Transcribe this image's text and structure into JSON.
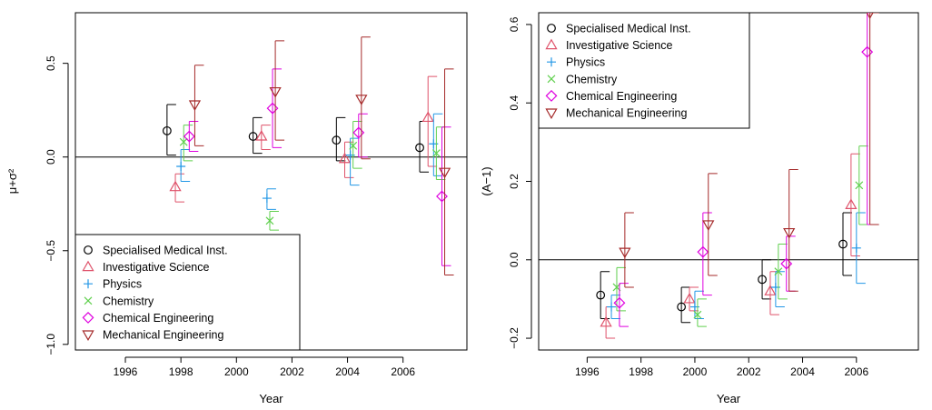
{
  "chart_data": [
    {
      "type": "scatter",
      "error_bars": true,
      "xlabel": "Year",
      "ylabel": "μ+σ²",
      "xlim": [
        1994.2,
        2008.3
      ],
      "ylim": [
        -1.03,
        0.77
      ],
      "xticks": [
        1996,
        1998,
        2000,
        2002,
        2004,
        2006
      ],
      "xtick_labels": [
        "1996",
        "1998",
        "2000",
        "2002",
        "2004",
        "2006"
      ],
      "yticks": [
        -1.0,
        -0.5,
        0.0,
        0.5
      ],
      "ytick_labels": [
        "−1.0",
        "−0.5",
        "0.0",
        "0.5"
      ],
      "hline": 0,
      "legend_position": "bottom-left",
      "series": [
        {
          "name": "Specialised Medical Inst.",
          "marker": "circle",
          "color": "#000000",
          "x": [
            1997.5,
            2000.6,
            2003.6,
            2006.6
          ],
          "y": [
            0.14,
            0.11,
            0.09,
            0.05
          ],
          "lower": [
            0.01,
            0.02,
            -0.02,
            -0.08
          ],
          "upper": [
            0.28,
            0.21,
            0.21,
            0.19
          ]
        },
        {
          "name": "Investigative Science",
          "marker": "triangle-up",
          "color": "#DF536B",
          "x": [
            1997.8,
            2000.9,
            2003.9,
            2006.9
          ],
          "y": [
            -0.16,
            0.11,
            -0.01,
            0.21
          ],
          "lower": [
            -0.24,
            0.04,
            -0.11,
            -0.05
          ],
          "upper": [
            -0.09,
            0.17,
            0.08,
            0.43
          ]
        },
        {
          "name": "Physics",
          "marker": "plus",
          "color": "#2297E6",
          "x": [
            1998.0,
            2001.1,
            2004.1,
            2007.1
          ],
          "y": [
            -0.05,
            -0.22,
            0.01,
            0.07
          ],
          "lower": [
            -0.13,
            -0.28,
            -0.15,
            -0.1
          ],
          "upper": [
            0.04,
            -0.17,
            0.1,
            0.23
          ]
        },
        {
          "name": "Chemistry",
          "marker": "cross",
          "color": "#61D04F",
          "x": [
            1998.1,
            2001.2,
            2004.2,
            2007.2
          ],
          "y": [
            0.08,
            -0.34,
            0.06,
            0.02
          ],
          "lower": [
            -0.02,
            -0.39,
            -0.06,
            -0.12
          ],
          "upper": [
            0.17,
            -0.29,
            0.19,
            0.16
          ]
        },
        {
          "name": "Chemical Engineering",
          "marker": "diamond",
          "color": "#DF00DF",
          "x": [
            1998.3,
            2001.3,
            2004.4,
            2007.4
          ],
          "y": [
            0.11,
            0.26,
            0.13,
            -0.21
          ],
          "lower": [
            0.03,
            0.05,
            0.0,
            -0.58
          ],
          "upper": [
            0.19,
            0.47,
            0.23,
            0.16
          ]
        },
        {
          "name": "Mechanical Engineering",
          "marker": "triangle-down",
          "color": "#A52A2A",
          "x": [
            1998.5,
            2001.4,
            2004.5,
            2007.5
          ],
          "y": [
            0.28,
            0.35,
            0.31,
            -0.08
          ],
          "lower": [
            0.06,
            0.09,
            -0.01,
            -0.63
          ],
          "upper": [
            0.49,
            0.62,
            0.64,
            0.47
          ]
        }
      ]
    },
    {
      "type": "scatter",
      "error_bars": true,
      "xlabel": "Year",
      "ylabel": "(A−1)",
      "xlim": [
        1994.2,
        2008.3
      ],
      "ylim": [
        -0.23,
        0.63
      ],
      "xticks": [
        1996,
        1998,
        2000,
        2002,
        2004,
        2006
      ],
      "xtick_labels": [
        "1996",
        "1998",
        "2000",
        "2002",
        "2004",
        "2006"
      ],
      "yticks": [
        -0.2,
        0.0,
        0.2,
        0.4,
        0.6
      ],
      "ytick_labels": [
        "−0.2",
        "0.0",
        "0.2",
        "0.4",
        "0.6"
      ],
      "hline": 0,
      "legend_position": "top-left",
      "series": [
        {
          "name": "Specialised Medical Inst.",
          "marker": "circle",
          "color": "#000000",
          "x": [
            1996.5,
            1999.5,
            2002.5,
            2005.5
          ],
          "y": [
            -0.09,
            -0.12,
            -0.05,
            0.04
          ],
          "lower": [
            -0.15,
            -0.16,
            -0.1,
            -0.04
          ],
          "upper": [
            -0.03,
            -0.07,
            0.0,
            0.12
          ]
        },
        {
          "name": "Investigative Science",
          "marker": "triangle-up",
          "color": "#DF536B",
          "x": [
            1996.7,
            1999.8,
            2002.8,
            2005.8
          ],
          "y": [
            -0.16,
            -0.1,
            -0.08,
            0.14
          ],
          "lower": [
            -0.2,
            -0.13,
            -0.14,
            0.01
          ],
          "upper": [
            -0.12,
            -0.07,
            -0.03,
            0.27
          ]
        },
        {
          "name": "Physics",
          "marker": "plus",
          "color": "#2297E6",
          "x": [
            1996.9,
            2000.0,
            2003.0,
            2006.0
          ],
          "y": [
            -0.12,
            -0.12,
            -0.07,
            0.03
          ],
          "lower": [
            -0.15,
            -0.15,
            -0.12,
            -0.06
          ],
          "upper": [
            -0.09,
            -0.08,
            -0.03,
            0.12
          ]
        },
        {
          "name": "Chemistry",
          "marker": "cross",
          "color": "#61D04F",
          "x": [
            1997.1,
            2000.1,
            2003.1,
            2006.1
          ],
          "y": [
            -0.07,
            -0.14,
            -0.03,
            0.19
          ],
          "lower": [
            -0.13,
            -0.17,
            -0.1,
            0.09
          ],
          "upper": [
            -0.02,
            -0.1,
            0.04,
            0.29
          ]
        },
        {
          "name": "Chemical Engineering",
          "marker": "diamond",
          "color": "#DF00DF",
          "x": [
            1997.2,
            2000.3,
            2003.4,
            2006.4
          ],
          "y": [
            -0.11,
            0.02,
            -0.01,
            0.53
          ],
          "lower": [
            -0.17,
            -0.09,
            -0.08,
            0.09
          ],
          "upper": [
            -0.06,
            0.12,
            0.06,
            0.63
          ]
        },
        {
          "name": "Mechanical Engineering",
          "marker": "triangle-down",
          "color": "#A52A2A",
          "x": [
            1997.4,
            2000.5,
            2003.5,
            2006.5
          ],
          "y": [
            0.02,
            0.09,
            0.07,
            0.63
          ],
          "lower": [
            -0.07,
            -0.04,
            -0.08,
            0.09
          ],
          "upper": [
            0.12,
            0.22,
            0.23,
            0.63
          ]
        }
      ]
    }
  ]
}
